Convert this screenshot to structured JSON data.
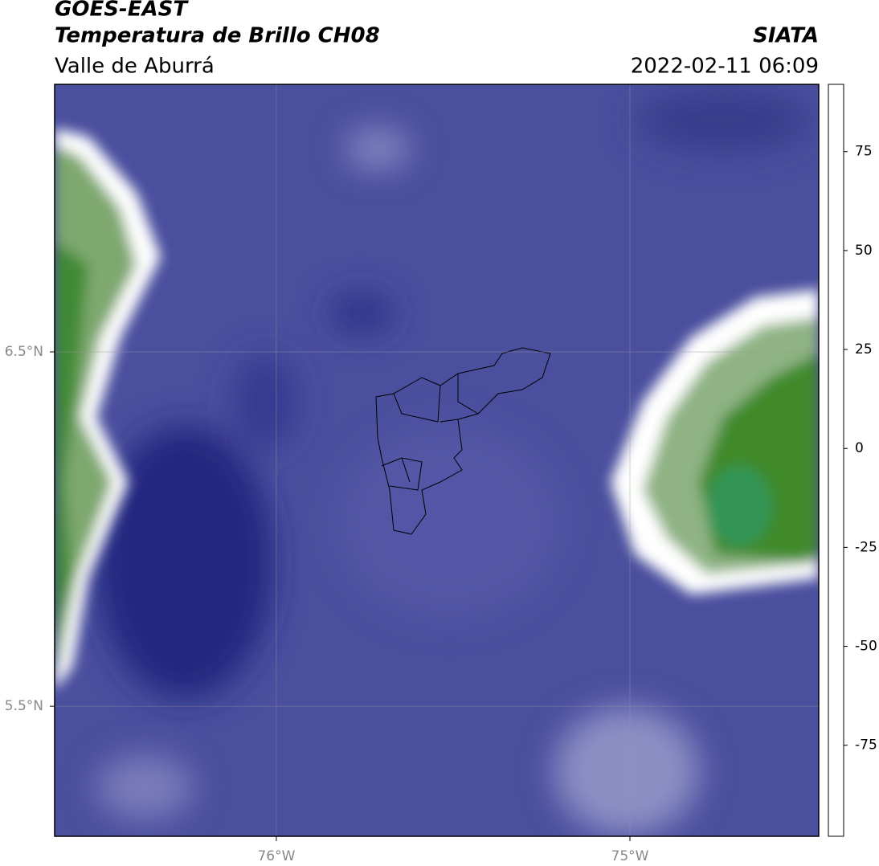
{
  "chart_data": {
    "type": "map",
    "title": "GOES-EAST",
    "subtitle": "Temperatura de Brillo CH08",
    "region": "Valle de Aburrá",
    "source": "SIATA",
    "datetime": "2022-02-11 06:09",
    "xlim": [
      -76.627,
      -74.466
    ],
    "ylim": [
      5.133,
      7.255
    ],
    "xticks": [
      {
        "value": -76,
        "label": "76°W"
      },
      {
        "value": -75,
        "label": "75°W"
      }
    ],
    "yticks": [
      {
        "value": 6.5,
        "label": "6.5°N"
      },
      {
        "value": 5.5,
        "label": "5.5°N"
      }
    ],
    "grid": true,
    "colorbar": {
      "lim": [
        -98,
        92
      ],
      "ticks": [
        75,
        50,
        25,
        0,
        -25,
        -50,
        -75
      ],
      "colormap": [
        {
          "value": -98,
          "color": "#ffffff"
        },
        {
          "value": -95.5,
          "color": "#ffffff"
        },
        {
          "value": -95.5,
          "color": "#00e8d8"
        },
        {
          "value": -85,
          "color": "#1fc0a8"
        },
        {
          "value": -75,
          "color": "#2e9a6a"
        },
        {
          "value": -62,
          "color": "#3f8a2a"
        },
        {
          "value": -55,
          "color": "#a8c49a"
        },
        {
          "value": -50,
          "color": "#ffffff"
        },
        {
          "value": -45,
          "color": "#b8b8de"
        },
        {
          "value": -38,
          "color": "#5a5eb0"
        },
        {
          "value": -30,
          "color": "#2a2e8e"
        },
        {
          "value": -26,
          "color": "#0a0a70"
        },
        {
          "value": -22,
          "color": "#605a40"
        },
        {
          "value": -16,
          "color": "#c0c020"
        },
        {
          "value": -12,
          "color": "#ffff00"
        },
        {
          "value": -6,
          "color": "#ffc000"
        },
        {
          "value": 0,
          "color": "#ff8000"
        },
        {
          "value": 8,
          "color": "#ff2000"
        },
        {
          "value": 8,
          "color": "#000000"
        },
        {
          "value": 92,
          "color": "#000000"
        }
      ]
    }
  }
}
